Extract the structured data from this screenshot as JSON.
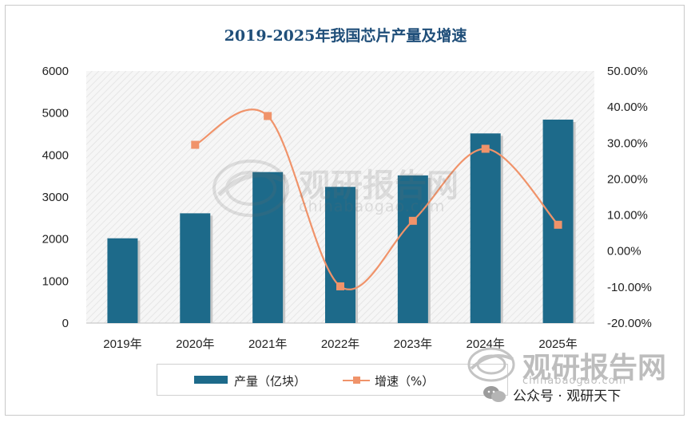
{
  "chart_data": {
    "type": "bar",
    "title": "2019-2025年我国芯片产量及增速",
    "categories": [
      "2019年",
      "2020年",
      "2021年",
      "2022年",
      "2023年",
      "2024年",
      "2025年"
    ],
    "series": [
      {
        "name": "产量（亿块）",
        "type": "bar",
        "axis": "left",
        "values": [
          2018,
          2613,
          3594,
          3242,
          3515,
          4514,
          4843
        ]
      },
      {
        "name": "增速（%）",
        "type": "line",
        "axis": "right",
        "values": [
          null,
          29.5,
          37.5,
          -9.8,
          8.4,
          28.4,
          7.3
        ]
      }
    ],
    "y_left": {
      "min": 0,
      "max": 6000,
      "ticks": [
        "0",
        "1000",
        "2000",
        "3000",
        "4000",
        "5000",
        "6000"
      ]
    },
    "y_right": {
      "min": -20,
      "max": 50,
      "ticks": [
        "-20.00%",
        "-10.00%",
        "0.00%",
        "10.00%",
        "20.00%",
        "30.00%",
        "40.00%",
        "50.00%"
      ]
    },
    "legend": "bottom",
    "grid": false
  },
  "colors": {
    "bar": "#1d6a8a",
    "line": "#f0936a",
    "title": "#1f4e79"
  },
  "watermark": {
    "name": "观研报告网",
    "url": "chinabaogao.com"
  },
  "brand": {
    "name": "观研报告网",
    "url": "chinabaogao.com"
  },
  "footer": {
    "wechat": "公众号 · 观研天下"
  }
}
